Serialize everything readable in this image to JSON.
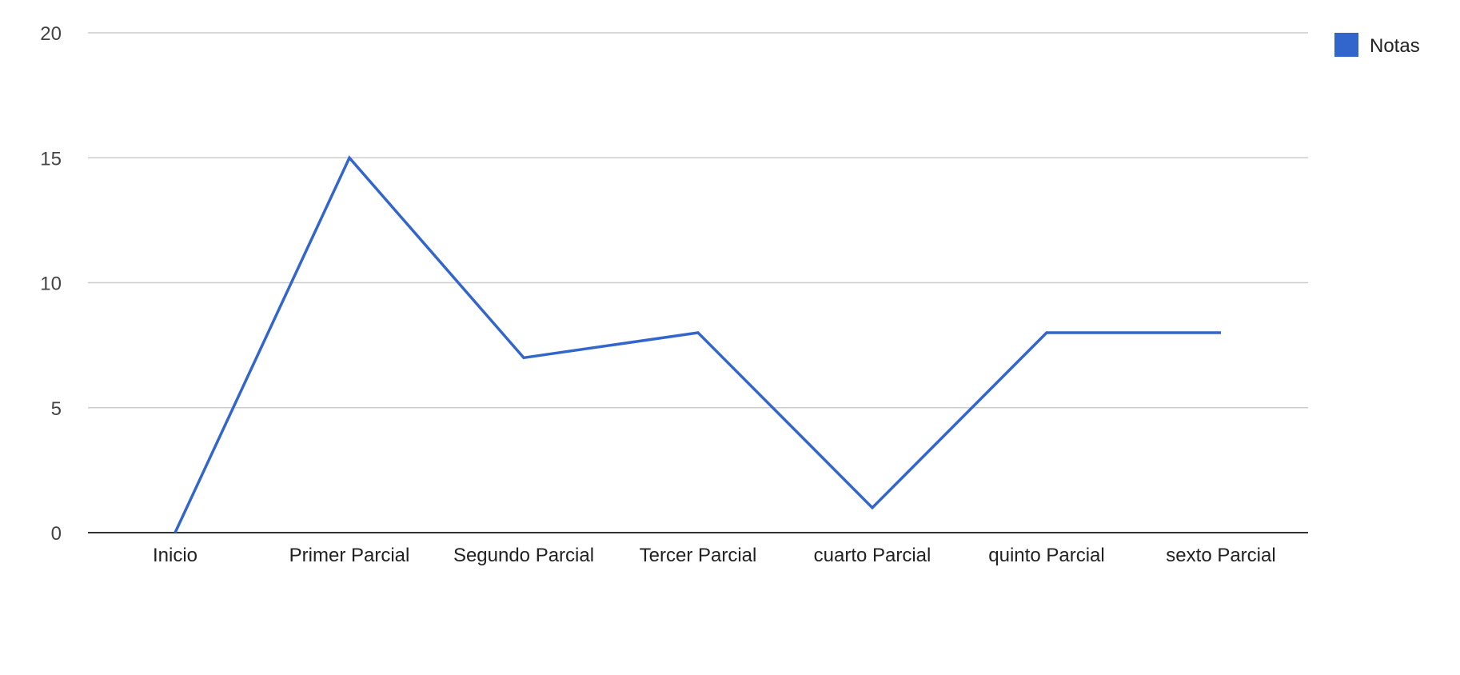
{
  "chart_data": {
    "type": "line",
    "categories": [
      "Inicio",
      "Primer Parcial",
      "Segundo Parcial",
      "Tercer Parcial",
      "cuarto Parcial",
      "quinto Parcial",
      "sexto Parcial"
    ],
    "series": [
      {
        "name": "Notas",
        "values": [
          0,
          15,
          7,
          8,
          1,
          8,
          8
        ],
        "color": "#3366cc"
      }
    ],
    "ylim": [
      0,
      20
    ],
    "yticks": [
      0,
      5,
      10,
      15,
      20
    ],
    "grid": true,
    "legend_position": "right"
  }
}
